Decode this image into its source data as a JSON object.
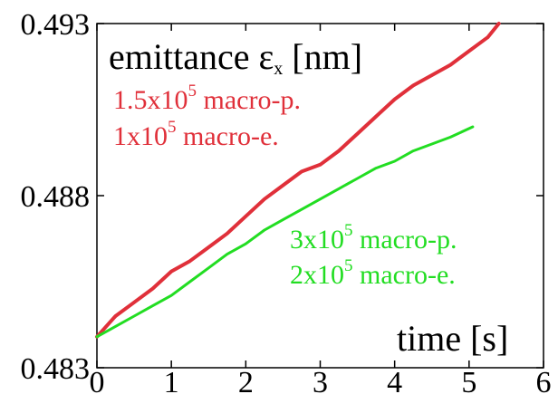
{
  "chart_data": {
    "type": "line",
    "title_main": "emittance ε",
    "title_sub": "x",
    "title_unit": " [nm]",
    "xlabel": "time [s]",
    "ylabel": "",
    "xlim": [
      0,
      6
    ],
    "ylim": [
      0.483,
      0.493
    ],
    "x_ticks": [
      "0",
      "1",
      "2",
      "3",
      "4",
      "5",
      "6"
    ],
    "y_ticks": [
      "0.483",
      "0.488",
      "0.493"
    ],
    "grid": false,
    "annotations": [
      {
        "color": "#e0303a",
        "lines": [
          {
            "base": "1.5x10",
            "sup": "5",
            "rest": " macro-p."
          },
          {
            "base": "1x10",
            "sup": "5",
            "rest": " macro-e."
          }
        ]
      },
      {
        "color": "#22dd22",
        "lines": [
          {
            "base": "3x10",
            "sup": "5",
            "rest": " macro-p."
          },
          {
            "base": "2x10",
            "sup": "5",
            "rest": " macro-e."
          }
        ]
      }
    ],
    "series": [
      {
        "color": "#e0303a",
        "x": [
          0,
          0.25,
          0.5,
          0.75,
          1.0,
          1.25,
          1.5,
          1.75,
          2.0,
          2.25,
          2.5,
          2.75,
          3.0,
          3.25,
          3.5,
          3.75,
          4.0,
          4.25,
          4.5,
          4.75,
          5.0,
          5.25,
          5.4
        ],
        "y": [
          0.4839,
          0.4845,
          0.4849,
          0.4853,
          0.4858,
          0.4861,
          0.4865,
          0.4869,
          0.4874,
          0.4879,
          0.4883,
          0.4887,
          0.4889,
          0.4893,
          0.4898,
          0.4903,
          0.4908,
          0.4912,
          0.4915,
          0.4918,
          0.4922,
          0.4926,
          0.493
        ]
      },
      {
        "color": "#22dd22",
        "x": [
          0,
          0.25,
          0.5,
          0.75,
          1.0,
          1.25,
          1.5,
          1.75,
          2.0,
          2.25,
          2.5,
          2.75,
          3.0,
          3.25,
          3.5,
          3.75,
          4.0,
          4.25,
          4.5,
          4.75,
          5.05
        ],
        "y": [
          0.4839,
          0.4842,
          0.4845,
          0.4848,
          0.4851,
          0.4855,
          0.4859,
          0.4863,
          0.4866,
          0.487,
          0.4873,
          0.4876,
          0.4879,
          0.4882,
          0.4885,
          0.4888,
          0.489,
          0.4893,
          0.4895,
          0.4897,
          0.49
        ]
      }
    ]
  }
}
